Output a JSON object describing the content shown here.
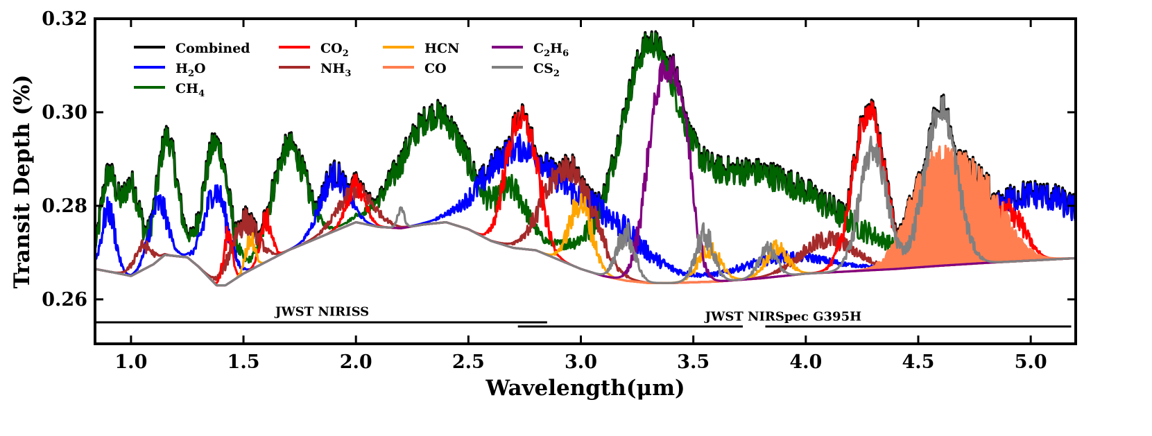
{
  "chart_data": {
    "type": "line",
    "xlabel": "Wavelength(μm)",
    "ylabel": "Transit Depth (%)",
    "xlim": [
      0.84,
      5.2
    ],
    "ylim": [
      0.2505,
      0.32
    ],
    "xticks": [
      1.0,
      1.5,
      2.0,
      2.5,
      3.0,
      3.5,
      4.0,
      4.5,
      5.0
    ],
    "xtick_labels": [
      "1.0",
      "1.5",
      "2.0",
      "2.5",
      "3.0",
      "3.5",
      "4.0",
      "4.5",
      "5.0"
    ],
    "yticks": [
      0.26,
      0.28,
      0.3,
      0.32
    ],
    "ytick_labels": [
      "0.26",
      "0.28",
      "0.30",
      "0.32"
    ],
    "grid": false,
    "legend_position": "top-left",
    "baseline": {
      "x": [
        0.84,
        0.95,
        1.0,
        1.1,
        1.15,
        1.25,
        1.3,
        1.38,
        1.42,
        1.5,
        1.6,
        1.7,
        1.8,
        1.9,
        2.0,
        2.1,
        2.2,
        2.3,
        2.4,
        2.5,
        2.6,
        2.7,
        2.8,
        2.9,
        3.0,
        3.1,
        3.2,
        3.3,
        3.4,
        3.6,
        3.8,
        4.0,
        4.2,
        4.4,
        4.6,
        4.8,
        5.0,
        5.2
      ],
      "y": [
        0.2665,
        0.2655,
        0.265,
        0.2675,
        0.2695,
        0.269,
        0.267,
        0.263,
        0.263,
        0.2655,
        0.268,
        0.2705,
        0.2725,
        0.2745,
        0.2765,
        0.2755,
        0.2752,
        0.276,
        0.2765,
        0.275,
        0.2725,
        0.271,
        0.2705,
        0.2685,
        0.2665,
        0.265,
        0.264,
        0.2635,
        0.2635,
        0.2638,
        0.2645,
        0.2655,
        0.266,
        0.2665,
        0.2672,
        0.2678,
        0.2683,
        0.2688
      ]
    },
    "series": [
      {
        "name": "Combined",
        "label_html": "Combined",
        "color": "#000000",
        "legend": true
      },
      {
        "name": "H2O",
        "label_main": "H",
        "label_sub": "2",
        "label_tail": "O",
        "color": "#0000ff",
        "legend": true
      },
      {
        "name": "CH4",
        "label_main": "CH",
        "label_sub": "4",
        "label_tail": "",
        "color": "#006400",
        "legend": true
      },
      {
        "name": "CO2",
        "label_main": "CO",
        "label_sub": "2",
        "label_tail": "",
        "color": "#ff0000",
        "legend": true
      },
      {
        "name": "NH3",
        "label_main": "NH",
        "label_sub": "3",
        "label_tail": "",
        "color": "#a52a2a",
        "legend": true
      },
      {
        "name": "HCN",
        "label_main": "HCN",
        "label_sub": "",
        "label_tail": "",
        "color": "#ffa500",
        "legend": true
      },
      {
        "name": "CO",
        "label_main": "CO",
        "label_sub": "",
        "label_tail": "",
        "color": "#ff7f50",
        "legend": true
      },
      {
        "name": "C2H6",
        "label_main": "C",
        "label_sub": "2",
        "label_tail": "H",
        "label_sub2": "6",
        "color": "#800080",
        "legend": true
      },
      {
        "name": "CS2",
        "label_main": "CS",
        "label_sub": "2",
        "label_tail": "",
        "color": "#808080",
        "legend": true
      }
    ],
    "features": {
      "CH4": [
        [
          0.9,
          0.02,
          0.035
        ],
        [
          1.0,
          0.019,
          0.04
        ],
        [
          1.16,
          0.025,
          0.045
        ],
        [
          1.38,
          0.03,
          0.055
        ],
        [
          1.7,
          0.022,
          0.075
        ],
        [
          2.35,
          0.023,
          0.15
        ],
        [
          2.7,
          0.01,
          0.06
        ],
        [
          3.3,
          0.037,
          0.12
        ],
        [
          3.7,
          0.023,
          0.4
        ]
      ],
      "H2O": [
        [
          0.9,
          0.013,
          0.03
        ],
        [
          1.12,
          0.012,
          0.04
        ],
        [
          1.38,
          0.02,
          0.05
        ],
        [
          1.9,
          0.012,
          0.06
        ],
        [
          2.7,
          0.018,
          0.14
        ],
        [
          3.05,
          0.014,
          0.2
        ],
        [
          3.9,
          0.004,
          0.2
        ],
        [
          5.0,
          0.014,
          0.25
        ]
      ],
      "CO2": [
        [
          1.43,
          0.01,
          0.02
        ],
        [
          1.6,
          0.009,
          0.025
        ],
        [
          2.0,
          0.008,
          0.04
        ],
        [
          2.7,
          0.02,
          0.05
        ],
        [
          2.78,
          0.018,
          0.05
        ],
        [
          4.28,
          0.034,
          0.07
        ],
        [
          4.9,
          0.011,
          0.07
        ]
      ],
      "NH3": [
        [
          1.05,
          0.005,
          0.04
        ],
        [
          1.5,
          0.011,
          0.06
        ],
        [
          2.0,
          0.007,
          0.08
        ],
        [
          2.9,
          0.012,
          0.09
        ],
        [
          3.0,
          0.012,
          0.09
        ],
        [
          4.1,
          0.007,
          0.12
        ]
      ],
      "HCN": [
        [
          1.53,
          0.007,
          0.02
        ],
        [
          3.0,
          0.014,
          0.05
        ],
        [
          3.57,
          0.007,
          0.05
        ],
        [
          3.87,
          0.006,
          0.05
        ]
      ],
      "CO": [
        [
          4.55,
          0.017,
          0.1
        ],
        [
          4.75,
          0.017,
          0.12
        ]
      ],
      "C2H6": [
        [
          3.35,
          0.039,
          0.06
        ],
        [
          3.45,
          0.03,
          0.05
        ]
      ],
      "CS2": [
        [
          2.2,
          0.004,
          0.015
        ],
        [
          3.2,
          0.01,
          0.04
        ],
        [
          3.55,
          0.01,
          0.04
        ],
        [
          3.83,
          0.006,
          0.04
        ],
        [
          4.3,
          0.026,
          0.06
        ],
        [
          4.6,
          0.034,
          0.07
        ]
      ]
    },
    "annotations": [
      {
        "text": "JWST NIRISS",
        "x_start": 0.84,
        "x_end": 2.85,
        "y": 0.2551,
        "label_x": 1.85,
        "label_y": 0.2565
      },
      {
        "text": "JWST NIRSpec G395H",
        "x_start": 2.72,
        "x_end": 3.72,
        "y": 0.2542,
        "label_x": 3.9,
        "label_y": 0.2555
      },
      {
        "text": "",
        "x_start": 3.82,
        "x_end": 5.18,
        "y": 0.2542
      }
    ]
  }
}
